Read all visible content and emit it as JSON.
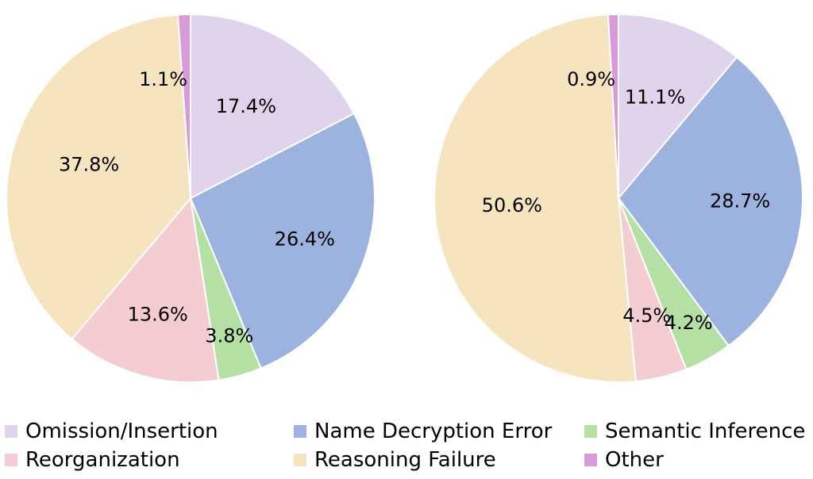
{
  "chart_data": [
    {
      "type": "pie",
      "categories": [
        "Omission/Insertion",
        "Name Decryption Error",
        "Semantic Inference",
        "Reorganization",
        "Reasoning Failure",
        "Other"
      ],
      "values": [
        17.4,
        26.4,
        3.8,
        13.6,
        37.8,
        1.1
      ],
      "labels": [
        "17.4%",
        "26.4%",
        "3.8%",
        "13.6%",
        "37.8%",
        "1.1%"
      ],
      "start_angle_deg": 0,
      "direction": "clockwise"
    },
    {
      "type": "pie",
      "categories": [
        "Omission/Insertion",
        "Name Decryption Error",
        "Semantic Inference",
        "Reorganization",
        "Reasoning Failure",
        "Other"
      ],
      "values": [
        11.1,
        28.7,
        4.2,
        4.5,
        50.6,
        0.9
      ],
      "labels": [
        "11.1%",
        "28.7%",
        "4.2%",
        "4.5%",
        "50.6%",
        "0.9%"
      ],
      "start_angle_deg": 0,
      "direction": "clockwise"
    }
  ],
  "legend": {
    "items": [
      {
        "key": "omission",
        "label": "Omission/Insertion",
        "color": "#e0d4ec"
      },
      {
        "key": "name",
        "label": "Name Decryption Error",
        "color": "#9cb3e0"
      },
      {
        "key": "semantic",
        "label": "Semantic Inference",
        "color": "#b4e0a3"
      },
      {
        "key": "reorg",
        "label": "Reorganization",
        "color": "#f4cdd3"
      },
      {
        "key": "reasoning",
        "label": "Reasoning Failure",
        "color": "#f5e4bd"
      },
      {
        "key": "other",
        "label": "Other",
        "color": "#d99ad9"
      }
    ],
    "placement": "bottom"
  }
}
